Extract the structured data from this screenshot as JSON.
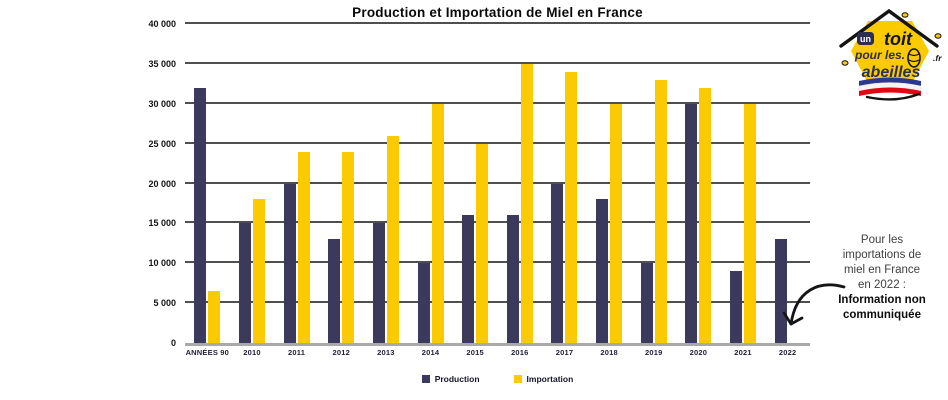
{
  "chart_data": {
    "type": "bar",
    "title": "Production et Importation de Miel en France",
    "categories": [
      "ANNÉES 90",
      "2010",
      "2011",
      "2012",
      "2013",
      "2014",
      "2015",
      "2016",
      "2017",
      "2018",
      "2019",
      "2020",
      "2021",
      "2022"
    ],
    "series": [
      {
        "name": "Production",
        "color": "#3b3a5c",
        "values": [
          32000,
          15000,
          20000,
          13000,
          15000,
          10000,
          16000,
          16000,
          20000,
          18000,
          10000,
          30000,
          9000,
          13000
        ]
      },
      {
        "name": "Importation",
        "color": "#fcca00",
        "values": [
          6500,
          18000,
          24000,
          24000,
          26000,
          30000,
          25000,
          35000,
          34000,
          30000,
          33000,
          32000,
          30000,
          null
        ]
      }
    ],
    "xlabel": "",
    "ylabel": "",
    "ylim": [
      0,
      40000
    ],
    "ytick_step": 5000,
    "grid": true,
    "legend_position": "bottom",
    "note": "Importation 2022 non communiquée"
  },
  "annotation": {
    "lines": [
      "Pour les",
      "importations de",
      "miel en France",
      "en 2022 :"
    ],
    "bold_lines": [
      "Information non",
      "communiquée"
    ]
  },
  "logo": {
    "word_un": "un",
    "word_toit": "toit",
    "word_pour_les": "pour les.",
    "word_abeilles": "abeilles",
    "tld": ".fr",
    "colors": {
      "hive": "#fcca00",
      "text": "#2e2d52",
      "outline": "#141414",
      "flag_blue": "#2b3990",
      "flag_white": "#f4f4f4",
      "flag_red": "#e30613"
    }
  },
  "style": {
    "gridline_color": "#4f4f4f",
    "axis_color": "#a9a9a9",
    "background": "#ffffff"
  }
}
